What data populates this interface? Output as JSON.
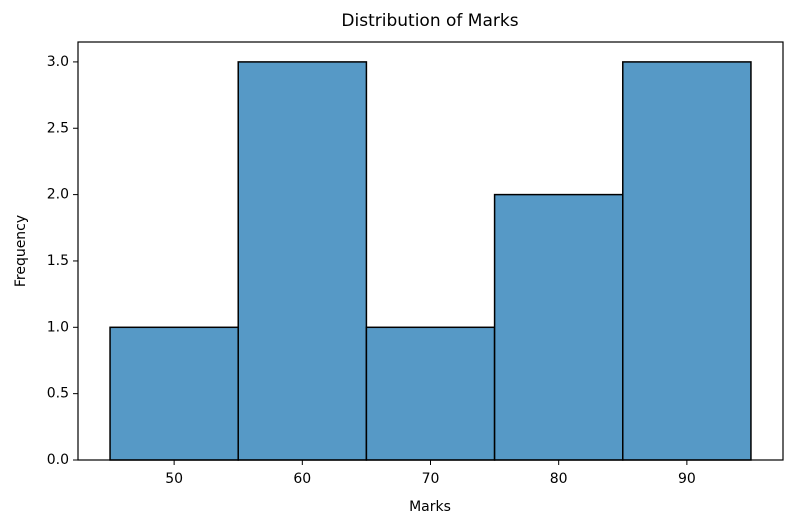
{
  "chart_data": {
    "type": "histogram",
    "title": "Distribution of Marks",
    "x_label": "Marks",
    "y_label": "Frequency",
    "bins": [
      45,
      55,
      65,
      75,
      85,
      95
    ],
    "values": [
      1,
      3,
      1,
      2,
      3
    ],
    "color": "#5699c6",
    "edgecolor": "#000000",
    "xlim": [
      42.5,
      97.5
    ],
    "xticks": [
      50,
      60,
      70,
      80,
      90
    ],
    "ylim": [
      0,
      3.15
    ],
    "yticks": [
      {
        "value": 0,
        "label": "0.0"
      },
      {
        "value": 0.5,
        "label": "0.5"
      },
      {
        "value": 1,
        "label": "1.0"
      },
      {
        "value": 1.5,
        "label": "1.5"
      },
      {
        "value": 2,
        "label": "2.0"
      },
      {
        "value": 2.5,
        "label": "2.5"
      },
      {
        "value": 3,
        "label": "3.0"
      }
    ],
    "grid": false
  }
}
